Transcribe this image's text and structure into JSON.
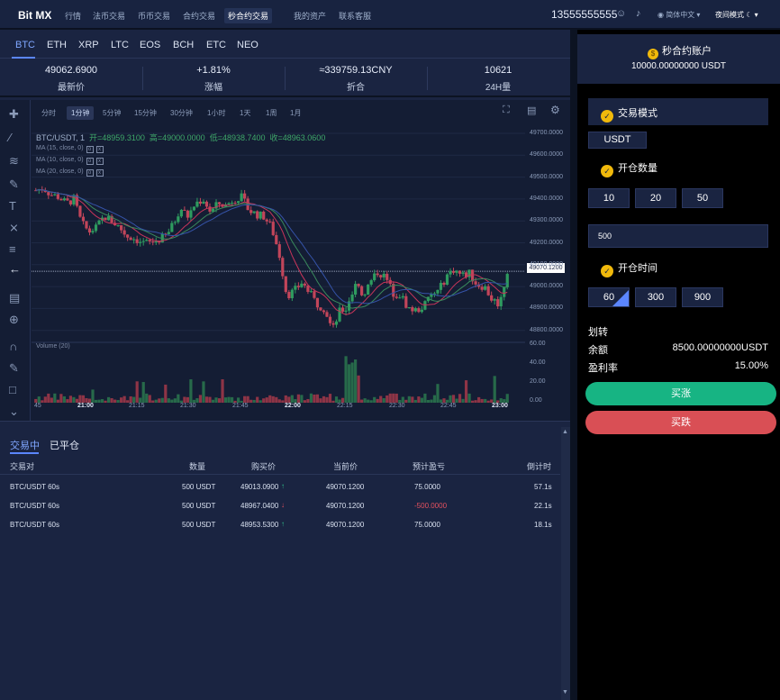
{
  "nav": {
    "logo": "Bit MX",
    "items": [
      "行情",
      "法币交易",
      "币币交易",
      "合约交易",
      "秒合约交易",
      "我的资产",
      "联系客服"
    ],
    "phone": "13555555555",
    "language": "简体中文",
    "night_mode": "夜间模式"
  },
  "coins": [
    "BTC",
    "ETH",
    "XRP",
    "LTC",
    "EOS",
    "BCH",
    "ETC",
    "NEO"
  ],
  "stats": [
    {
      "value": "49062.6900",
      "label": "最新价"
    },
    {
      "value": "+1.81%",
      "label": "涨幅"
    },
    {
      "value": "≈339759.13CNY",
      "label": "折合"
    },
    {
      "value": "10621",
      "label": "24H量"
    }
  ],
  "chart_toolbar": [
    "分时",
    "1分钟",
    "5分钟",
    "15分钟",
    "30分钟",
    "1小时",
    "1天",
    "1周",
    "1月"
  ],
  "chart_header": {
    "symbol": "BTC/USDT, 1",
    "open": "开=48959.3100",
    "high": "高=49000.0000",
    "low": "低=48938.7400",
    "close": "收=48963.0600",
    "ma1": "MA (15, close, 0)",
    "ma2": "MA (10, close, 0)",
    "ma3": "MA (20, close, 0)",
    "volume_label": "Volume (20)",
    "price_tag": "49070.1200"
  },
  "chart_data": {
    "type": "candlestick",
    "price_axis": [
      "49700.0000",
      "49600.0000",
      "49500.0000",
      "49400.0000",
      "49300.0000",
      "49200.0000",
      "49100.0000",
      "49000.0000",
      "48900.0000",
      "48800.0000"
    ],
    "volume_axis": [
      "60.00",
      "40.00",
      "20.00",
      "0.00"
    ],
    "time_axis": [
      "45",
      "21:00",
      "21:15",
      "21:30",
      "21:45",
      "22:00",
      "22:15",
      "22:30",
      "22:45",
      "23:00"
    ],
    "close_path": [
      49440,
      49450,
      49420,
      49410,
      49380,
      49400,
      49290,
      49250,
      49270,
      49320,
      49300,
      49270,
      49230,
      49220,
      49200,
      49200,
      49210,
      49230,
      49280,
      49360,
      49320,
      49380,
      49400,
      49340,
      49380,
      49370,
      49400,
      49410,
      49350,
      49330,
      49320,
      49270,
      49150,
      48960,
      48980,
      49020,
      48970,
      48920,
      48900,
      48800,
      48890,
      48900,
      49000,
      48960,
      49020,
      49070,
      49040,
      48970,
      48960,
      48900,
      48890,
      48910,
      48960,
      48980,
      49050,
      49080,
      49050,
      49060,
      49010,
      49000,
      48940,
      48920,
      49070
    ]
  },
  "orders": {
    "tab_active": "交易中",
    "tab_closed": "已平仓",
    "headers": [
      "交易对",
      "数量",
      "购买价",
      "当前价",
      "预计盈亏",
      "倒计时"
    ],
    "rows": [
      {
        "pair": "BTC/USDT 60s",
        "qty": "500 USDT",
        "buy": "49013.0900",
        "dir": "up",
        "cur": "49070.1200",
        "pnl": "75.0000",
        "pnl_neg": false,
        "time": "57.1s"
      },
      {
        "pair": "BTC/USDT 60s",
        "qty": "500 USDT",
        "buy": "48967.0400",
        "dir": "down",
        "cur": "49070.1200",
        "pnl": "-500.0000",
        "pnl_neg": true,
        "time": "22.1s"
      },
      {
        "pair": "BTC/USDT 60s",
        "qty": "500 USDT",
        "buy": "48953.5300",
        "dir": "up",
        "cur": "49070.1200",
        "pnl": "75.0000",
        "pnl_neg": false,
        "time": "18.1s"
      }
    ]
  },
  "account": {
    "title": "秒合约账户",
    "balance": "10000.00000000 USDT"
  },
  "panel": {
    "mode_label": "交易模式",
    "currency": "USDT",
    "qty_label": "开仓数量",
    "qty_options": [
      "10",
      "20",
      "50"
    ],
    "amount_value": "500",
    "time_label": "开仓时间",
    "time_options": [
      "60",
      "300",
      "900"
    ],
    "transfer": "划转",
    "balance_label": "余额",
    "balance_value": "8500.00000000USDT",
    "profit_label": "盈利率",
    "profit_value": "15.00%",
    "buy_up": "买涨",
    "buy_down": "买跌"
  },
  "colors": {
    "up": "#2fc28b",
    "down": "#e5515f",
    "accent": "#5b86ff",
    "gold": "#f0b90b"
  }
}
